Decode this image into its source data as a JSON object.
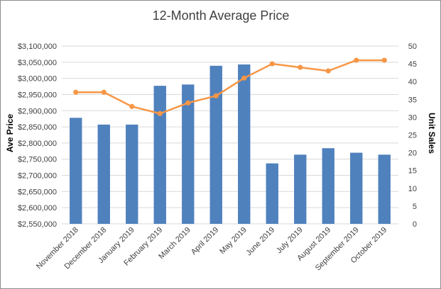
{
  "chart_data": {
    "type": "bar",
    "title": "12-Month Average Price",
    "categories": [
      "November 2018",
      "December 2018",
      "January 2019",
      "February 2019",
      "March 2019",
      "April 2019",
      "May 2019",
      "June 2019",
      "July 2019",
      "August 2019",
      "September 2019",
      "October 2019"
    ],
    "series": [
      {
        "name": "Ave Price",
        "type": "bar",
        "axis": "left",
        "color": "#4f81bd",
        "values": [
          2878000,
          2857000,
          2857000,
          2977000,
          2981000,
          3039000,
          3043000,
          2737000,
          2764000,
          2784000,
          2770000,
          2764000
        ]
      },
      {
        "name": "Unit Sales",
        "type": "line",
        "axis": "right",
        "color": "#f79646",
        "values": [
          37,
          37,
          33,
          31,
          34,
          36,
          41,
          45,
          44,
          43,
          46,
          46
        ]
      }
    ],
    "ylabel": "Ave Price",
    "y2label": "Unit Sales",
    "ylim": [
      2550000,
      3100000
    ],
    "y2lim": [
      0,
      50
    ],
    "yticks": [
      "$2,550,000",
      "$2,600,000",
      "$2,650,000",
      "$2,700,000",
      "$2,750,000",
      "$2,800,000",
      "$2,850,000",
      "$2,900,000",
      "$2,950,000",
      "$3,000,000",
      "$3,050,000",
      "$3,100,000"
    ],
    "y2ticks": [
      "0",
      "5",
      "10",
      "15",
      "20",
      "25",
      "30",
      "35",
      "40",
      "45",
      "50"
    ],
    "grid": true,
    "legend": "none"
  }
}
